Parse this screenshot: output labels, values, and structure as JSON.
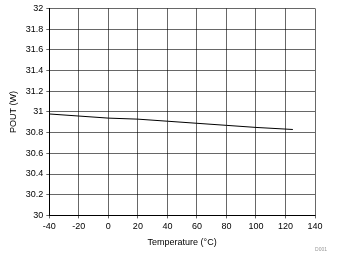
{
  "chart_data": {
    "type": "line",
    "x_label": "Temperature (°C)",
    "y_label": "POUT (W)",
    "annotation": "D001",
    "series": [
      {
        "name": "POUT",
        "color": "#000000",
        "x": [
          -40,
          -20,
          0,
          20,
          40,
          60,
          80,
          100,
          125
        ],
        "values": [
          30.98,
          30.96,
          30.94,
          30.93,
          30.91,
          30.89,
          30.87,
          30.85,
          30.83
        ]
      }
    ],
    "xlim": [
      -40,
      140
    ],
    "xticks": [
      -40,
      -20,
      0,
      20,
      40,
      60,
      80,
      100,
      120,
      140
    ],
    "ylim": [
      30,
      32
    ],
    "yticks": [
      30,
      30.2,
      30.4,
      30.6,
      30.8,
      31,
      31.2,
      31.4,
      31.6,
      31.8,
      32
    ],
    "grid": true
  }
}
